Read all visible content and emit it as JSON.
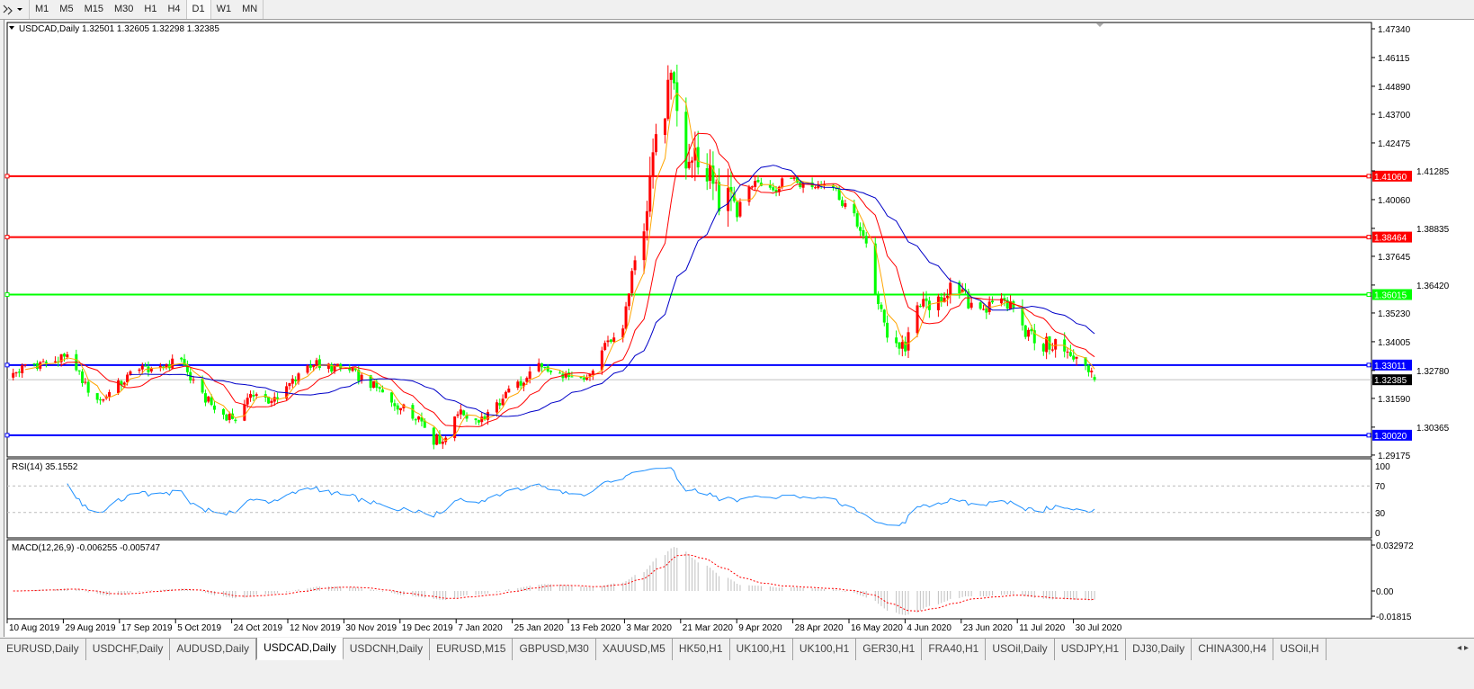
{
  "toolbar": {
    "timeframes": [
      "M1",
      "M5",
      "M15",
      "M30",
      "H1",
      "H4",
      "D1",
      "W1",
      "MN"
    ],
    "active_timeframe": "D1"
  },
  "chart": {
    "header": "USDCAD,Daily  1.32501 1.32605 1.32298 1.32385",
    "rsi_label": "RSI(14) 35.1552",
    "macd_label": "MACD(12,26,9) -0.006255 -0.005747"
  },
  "tabs": {
    "items": [
      "EURUSD,Daily",
      "USDCHF,Daily",
      "AUDUSD,Daily",
      "USDCAD,Daily",
      "USDCNH,Daily",
      "EURUSD,M15",
      "GBPUSD,M30",
      "XAUUSD,M5",
      "HK50,H1",
      "UK100,H1",
      "UK100,H1",
      "GER30,H1",
      "FRA40,H1",
      "USOil,Daily",
      "USDJPY,H1",
      "DJ30,Daily",
      "CHINA300,H4",
      "USOil,H"
    ],
    "active": "USDCAD,Daily",
    "arrows": "◂ ▸"
  },
  "chart_data": {
    "type": "candlestick",
    "symbol": "USDCAD",
    "timeframe": "Daily",
    "last_bar": {
      "open": 1.32501,
      "high": 1.32605,
      "low": 1.32298,
      "close": 1.32385
    },
    "current_price": "1.32385",
    "colors": {
      "bull": "#ff0000",
      "bear": "#00ff00",
      "ma_fast": "#ffa500",
      "ma_mid": "#ff0000",
      "ma_slow": "#0000c8",
      "rsi": "#1e90ff",
      "macd_hist": "#c0c0c0",
      "macd_signal": "#ff0000"
    },
    "ylim": [
      1.29175,
      1.4734
    ],
    "y_ticks": [
      "1.47340",
      "1.46115",
      "1.44890",
      "1.43700",
      "1.42475",
      "1.41285",
      "1.40060",
      "1.38835",
      "1.37645",
      "1.36420",
      "1.35230",
      "1.34005",
      "1.32780",
      "1.31590",
      "1.30365",
      "1.29175"
    ],
    "x_ticks": [
      "10 Aug 2019",
      "29 Aug 2019",
      "17 Sep 2019",
      "5 Oct 2019",
      "24 Oct 2019",
      "12 Nov 2019",
      "30 Nov 2019",
      "19 Dec 2019",
      "7 Jan 2020",
      "25 Jan 2020",
      "13 Feb 2020",
      "3 Mar 2020",
      "21 Mar 2020",
      "9 Apr 2020",
      "28 Apr 2020",
      "16 May 2020",
      "4 Jun 2020",
      "23 Jun 2020",
      "11 Jul 2020",
      "30 Jul 2020"
    ],
    "levels": [
      {
        "price": "1.41060",
        "color": "#ff0000"
      },
      {
        "price": "1.38464",
        "color": "#ff0000"
      },
      {
        "price": "1.36015",
        "color": "#00ff00"
      },
      {
        "price": "1.33011",
        "color": "#0000ff"
      },
      {
        "price": "1.30020",
        "color": "#0000ff"
      }
    ],
    "close_path": [
      [
        "2019-08-10",
        1.325
      ],
      [
        "2019-08-17",
        1.33
      ],
      [
        "2019-08-30",
        1.333
      ],
      [
        "2019-09-07",
        1.318
      ],
      [
        "2019-09-10",
        1.315
      ],
      [
        "2019-09-22",
        1.328
      ],
      [
        "2019-10-01",
        1.33
      ],
      [
        "2019-10-07",
        1.332
      ],
      [
        "2019-10-11",
        1.322
      ],
      [
        "2019-10-19",
        1.31
      ],
      [
        "2019-10-26",
        1.307
      ],
      [
        "2019-10-29",
        1.318
      ],
      [
        "2019-11-06",
        1.315
      ],
      [
        "2019-11-15",
        1.325
      ],
      [
        "2019-11-19",
        1.331
      ],
      [
        "2019-11-27",
        1.329
      ],
      [
        "2019-12-03",
        1.327
      ],
      [
        "2019-12-09",
        1.322
      ],
      [
        "2019-12-18",
        1.313
      ],
      [
        "2019-12-25",
        1.308
      ],
      [
        "2019-12-30",
        1.298
      ],
      [
        "2020-01-03",
        1.299
      ],
      [
        "2020-01-06",
        1.31
      ],
      [
        "2020-01-14",
        1.307
      ],
      [
        "2020-01-20",
        1.313
      ],
      [
        "2020-01-27",
        1.322
      ],
      [
        "2020-02-04",
        1.33
      ],
      [
        "2020-02-10",
        1.326
      ],
      [
        "2020-02-19",
        1.323
      ],
      [
        "2020-02-22",
        1.328
      ],
      [
        "2020-02-25",
        1.34
      ],
      [
        "2020-03-01",
        1.34
      ],
      [
        "2020-03-04",
        1.36
      ],
      [
        "2020-03-07",
        1.385
      ],
      [
        "2020-03-10",
        1.4
      ],
      [
        "2020-03-13",
        1.43
      ],
      [
        "2020-03-18",
        1.45
      ],
      [
        "2020-03-21",
        1.425
      ],
      [
        "2020-03-22",
        1.415
      ],
      [
        "2020-03-28",
        1.42
      ],
      [
        "2020-04-03",
        1.4
      ],
      [
        "2020-04-09",
        1.395
      ],
      [
        "2020-04-15",
        1.41
      ],
      [
        "2020-04-21",
        1.405
      ],
      [
        "2020-04-27",
        1.41
      ],
      [
        "2020-05-03",
        1.405
      ],
      [
        "2020-05-09",
        1.41
      ],
      [
        "2020-05-14",
        1.4
      ],
      [
        "2020-05-18",
        1.395
      ],
      [
        "2020-05-23",
        1.375
      ],
      [
        "2020-05-26",
        1.355
      ],
      [
        "2020-05-30",
        1.34
      ],
      [
        "2020-06-04",
        1.338
      ],
      [
        "2020-06-07",
        1.355
      ],
      [
        "2020-06-14",
        1.357
      ],
      [
        "2020-06-20",
        1.365
      ],
      [
        "2020-06-25",
        1.357
      ],
      [
        "2020-07-02",
        1.354
      ],
      [
        "2020-07-07",
        1.358
      ],
      [
        "2020-07-11",
        1.352
      ],
      [
        "2020-07-14",
        1.345
      ],
      [
        "2020-07-19",
        1.338
      ],
      [
        "2020-07-25",
        1.34
      ],
      [
        "2020-07-29",
        1.332
      ],
      [
        "2020-08-01",
        1.336
      ],
      [
        "2020-08-06",
        1.32385
      ]
    ],
    "rsi": {
      "period": 14,
      "ylim": [
        0,
        100
      ],
      "levels": [
        30,
        70
      ],
      "ticks": [
        "100",
        "70",
        "30",
        "0"
      ],
      "last": 35.1552
    },
    "macd": {
      "fast": 12,
      "slow": 26,
      "signal": 9,
      "ticks": [
        "0.032972",
        "0.00",
        "-0.01815"
      ],
      "main": -0.006255,
      "signal_value": -0.005747
    }
  }
}
